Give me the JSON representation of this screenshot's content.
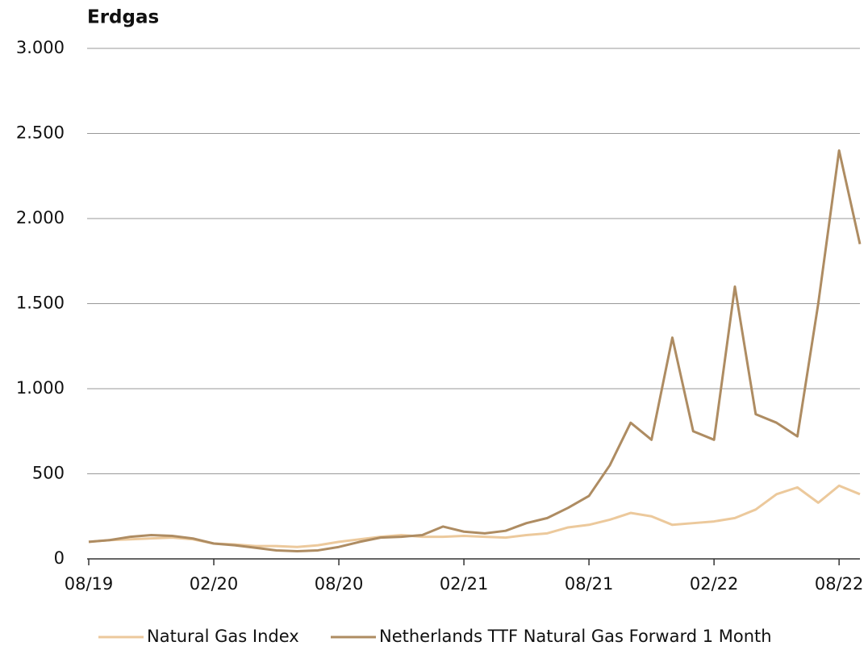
{
  "chart_data": {
    "type": "line",
    "title": "Erdgas",
    "x": [
      "08/19",
      "09/19",
      "10/19",
      "11/19",
      "12/19",
      "01/20",
      "02/20",
      "03/20",
      "04/20",
      "05/20",
      "06/20",
      "07/20",
      "08/20",
      "09/20",
      "10/20",
      "11/20",
      "12/20",
      "01/21",
      "02/21",
      "03/21",
      "04/21",
      "05/21",
      "06/21",
      "07/21",
      "08/21",
      "09/21",
      "10/21",
      "11/21",
      "12/21",
      "01/22",
      "02/22",
      "03/22",
      "04/22",
      "05/22",
      "06/22",
      "07/22",
      "08/22",
      "09/22"
    ],
    "series": [
      {
        "name": "Natural Gas Index",
        "color": "#ecc99c",
        "values": [
          100,
          110,
          115,
          120,
          125,
          115,
          90,
          85,
          75,
          75,
          70,
          80,
          100,
          115,
          130,
          140,
          130,
          130,
          135,
          130,
          125,
          140,
          150,
          185,
          200,
          230,
          270,
          250,
          200,
          210,
          220,
          240,
          290,
          380,
          420,
          330,
          430,
          380
        ]
      },
      {
        "name": "Netherlands TTF Natural Gas Forward 1 Month",
        "color": "#ae8c62",
        "values": [
          100,
          110,
          130,
          140,
          135,
          120,
          90,
          80,
          65,
          50,
          45,
          50,
          70,
          100,
          125,
          130,
          140,
          190,
          160,
          150,
          165,
          210,
          240,
          300,
          370,
          550,
          800,
          700,
          1300,
          750,
          700,
          1600,
          850,
          800,
          720,
          1500,
          2400,
          1850
        ]
      }
    ],
    "ylim": [
      0,
      3000
    ],
    "yticks": [
      0,
      500,
      {
        "value": 1000,
        "label": "1.000"
      },
      {
        "value": 1500,
        "label": "1.500"
      },
      {
        "value": 2000,
        "label": "2.000"
      },
      {
        "value": 2500,
        "label": "2.500"
      },
      {
        "value": 3000,
        "label": "3.000"
      }
    ],
    "xticks": [
      "08/19",
      "02/20",
      "08/20",
      "02/21",
      "08/21",
      "02/22",
      "08/22"
    ],
    "grid": true,
    "legend": "bottom"
  }
}
